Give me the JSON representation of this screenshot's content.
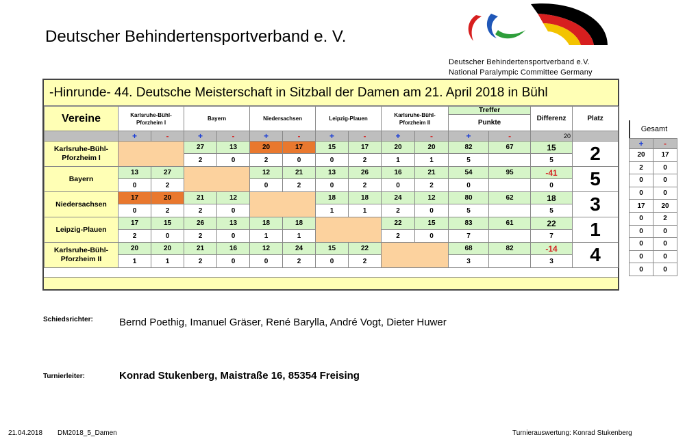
{
  "org_heading": "Deutscher Behindertensportverband e. V.",
  "logo": {
    "line1": "Deutscher Behindertensportverband e.V.",
    "line2": "National Paralympic Committee Germany"
  },
  "title": "-Hinrunde- 44. Deutsche Meisterschaft in Sitzball der Damen am 21. April 2018 in Bühl",
  "header": {
    "vereine": "Vereine",
    "cols": [
      "Karlsruhe-Bühl-Pforzheim I",
      "Bayern",
      "Niedersachsen",
      "Leipzig-Plauen",
      "Karlsruhe-Bühl-Pforzheim II"
    ],
    "treffer": "Treffer",
    "punkte": "Punkte",
    "differenz": "Differenz",
    "platz": "Platz",
    "plus": "+",
    "minus": "-",
    "diff_row_value": "20"
  },
  "teams": [
    {
      "name": "Karlsruhe-Bühl-Pforzheim I",
      "scores": [
        null,
        [
          "27",
          "13"
        ],
        [
          "20",
          "17"
        ],
        [
          "15",
          "17"
        ],
        [
          "20",
          "20"
        ]
      ],
      "points": [
        null,
        [
          "2",
          "0"
        ],
        [
          "2",
          "0"
        ],
        [
          "0",
          "2"
        ],
        [
          "1",
          "1"
        ]
      ],
      "treffer": [
        "82",
        "67"
      ],
      "punkte": "5",
      "diff": "15",
      "diff_pts": "5",
      "platz": "2"
    },
    {
      "name": "Bayern",
      "scores": [
        [
          "13",
          "27"
        ],
        null,
        [
          "12",
          "21"
        ],
        [
          "13",
          "26"
        ],
        [
          "16",
          "21"
        ]
      ],
      "points": [
        [
          "0",
          "2"
        ],
        null,
        [
          "0",
          "2"
        ],
        [
          "0",
          "2"
        ],
        [
          "0",
          "2"
        ]
      ],
      "treffer": [
        "54",
        "95"
      ],
      "punkte": "0",
      "diff": "-41",
      "diff_pts": "0",
      "platz": "5"
    },
    {
      "name": "Niedersachsen",
      "scores": [
        [
          "17",
          "20"
        ],
        [
          "21",
          "12"
        ],
        null,
        [
          "18",
          "18"
        ],
        [
          "24",
          "12"
        ]
      ],
      "points": [
        [
          "0",
          "2"
        ],
        [
          "2",
          "0"
        ],
        null,
        [
          "1",
          "1"
        ],
        [
          "2",
          "0"
        ]
      ],
      "treffer": [
        "80",
        "62"
      ],
      "punkte": "5",
      "diff": "18",
      "diff_pts": "5",
      "platz": "3"
    },
    {
      "name": "Leipzig-Plauen",
      "scores": [
        [
          "17",
          "15"
        ],
        [
          "26",
          "13"
        ],
        [
          "18",
          "18"
        ],
        null,
        [
          "22",
          "15"
        ]
      ],
      "points": [
        [
          "2",
          "0"
        ],
        [
          "2",
          "0"
        ],
        [
          "1",
          "1"
        ],
        null,
        [
          "2",
          "0"
        ]
      ],
      "treffer": [
        "83",
        "61"
      ],
      "punkte": "7",
      "diff": "22",
      "diff_pts": "7",
      "platz": "1"
    },
    {
      "name": "Karlsruhe-Bühl-Pforzheim II",
      "scores": [
        [
          "20",
          "20"
        ],
        [
          "21",
          "16"
        ],
        [
          "12",
          "24"
        ],
        [
          "15",
          "22"
        ],
        null
      ],
      "points": [
        [
          "1",
          "1"
        ],
        [
          "2",
          "0"
        ],
        [
          "0",
          "2"
        ],
        [
          "0",
          "2"
        ],
        null
      ],
      "treffer": [
        "68",
        "82"
      ],
      "punkte": "3",
      "diff": "-14",
      "diff_pts": "3",
      "platz": "4"
    }
  ],
  "gesamt": {
    "label": "Gesamt",
    "rows": [
      [
        "20",
        "17"
      ],
      [
        "2",
        "0"
      ],
      [
        "0",
        "0"
      ],
      [
        "0",
        "0"
      ],
      [
        "17",
        "20"
      ],
      [
        "0",
        "2"
      ],
      [
        "0",
        "0"
      ],
      [
        "0",
        "0"
      ],
      [
        "0",
        "0"
      ],
      [
        "0",
        "0"
      ]
    ]
  },
  "schiedsrichter_label": "Schiedsrichter:",
  "schiedsrichter_text": "Bernd Poethig, Imanuel Gräser, René Barylla, André Vogt, Dieter Huwer",
  "turnierleiter_label": "Turnierleiter:",
  "turnierleiter_text": "Konrad Stukenberg, Maistraße 16, 85354 Freising",
  "footer": {
    "date": "21.04.2018",
    "code": "DM2018_5_Damen",
    "right": "Turnierauswertung: Konrad Stukenberg"
  },
  "colors": {
    "title_bg": "#ffffb5",
    "total_bg": "#d6f5c8",
    "self_cell": "#fcd29e",
    "highlight": "#e9782e",
    "plus": "#1a3dd6",
    "minus": "#d42424"
  }
}
